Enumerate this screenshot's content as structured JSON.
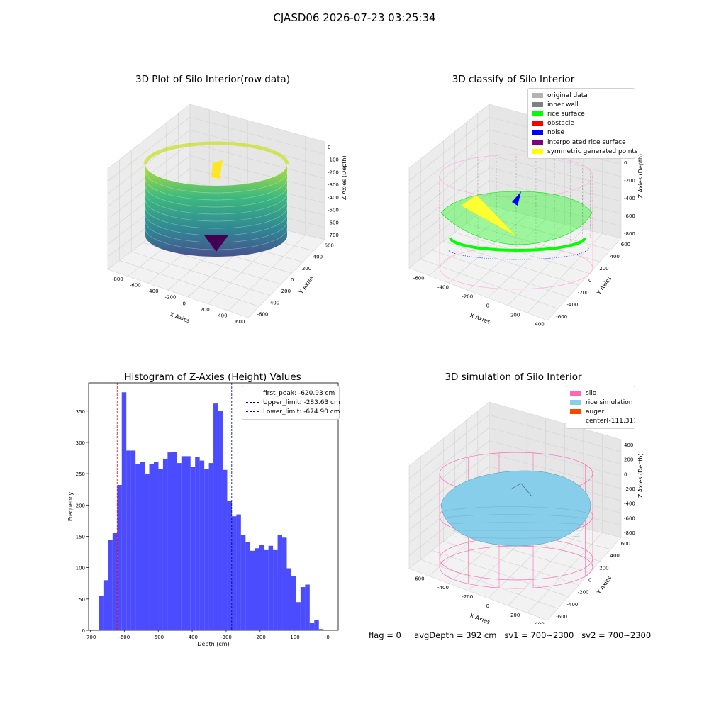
{
  "suptitle": "CJASD06 2026-07-23 03:25:34",
  "panels": {
    "raw": {
      "title": "3D Plot of Silo Interior(row data)",
      "xlabel": "X Axies",
      "ylabel": "Y Axies",
      "zlabel": "Z Axies (Depth)",
      "xticks": [
        "-800",
        "-600",
        "-400",
        "-200",
        "0",
        "200",
        "400",
        "600"
      ],
      "yticks": [
        "-600",
        "-400",
        "-200",
        "0",
        "200",
        "400",
        "600"
      ],
      "zticks": [
        "0",
        "-100",
        "-200",
        "-300",
        "-400",
        "-500",
        "-600",
        "-700"
      ]
    },
    "classify": {
      "title": "3D classify of Silo Interior",
      "xlabel": "X Axies",
      "ylabel": "Y Axies",
      "zlabel": "Z Axies (Depth)",
      "xticks": [
        "-600",
        "-400",
        "-200",
        "0",
        "200",
        "400"
      ],
      "yticks": [
        "-600",
        "-400",
        "-200",
        "0",
        "200",
        "400",
        "600"
      ],
      "zticks": [
        "200",
        "0",
        "-200",
        "-400",
        "-600",
        "-800"
      ],
      "legend": [
        {
          "label": "original data",
          "color": "#b3b3b3"
        },
        {
          "label": "inner wall",
          "color": "#808080"
        },
        {
          "label": "rice surface",
          "color": "#00ff00"
        },
        {
          "label": "obstacle",
          "color": "#ff0000"
        },
        {
          "label": "noise",
          "color": "#0000ff"
        },
        {
          "label": "interpolated rice surface",
          "color": "#800080"
        },
        {
          "label": "symmetric generated points",
          "color": "#ffff00"
        }
      ]
    },
    "simulation": {
      "title": "3D simulation of Silo Interior",
      "xlabel": "X Axies",
      "ylabel": "Y Axies",
      "zlabel": "Z Axies (Depth)",
      "xticks": [
        "-600",
        "-400",
        "-200",
        "0",
        "200",
        "400"
      ],
      "yticks": [
        "-600",
        "-400",
        "-200",
        "0",
        "200",
        "400",
        "600"
      ],
      "zticks": [
        "400",
        "200",
        "0",
        "-200",
        "-400",
        "-600",
        "-800"
      ],
      "legend": [
        {
          "label": "silo",
          "color": "#ff69b4"
        },
        {
          "label": "rice simulation",
          "color": "#87ceeb"
        },
        {
          "label": "auger",
          "color": "#ff4500"
        },
        {
          "label": "center(-111,31)",
          "color": ""
        }
      ]
    }
  },
  "chart_data": [
    {
      "type": "bar",
      "title": "Histogram of Z-Axies (Height) Values",
      "xlabel": "Depth (cm)",
      "ylabel": "Frequency",
      "xlim": [
        -705,
        30
      ],
      "ylim": [
        0,
        395
      ],
      "xticks": [
        -700,
        -600,
        -500,
        -400,
        -300,
        -200,
        -100,
        0
      ],
      "yticks": [
        0,
        50,
        100,
        150,
        200,
        250,
        300,
        350
      ],
      "bar_color": "#0000ff",
      "bins_start": -674.9,
      "bin_width": 13.5,
      "values": [
        55,
        80,
        144,
        155,
        232,
        380,
        287,
        287,
        265,
        269,
        249,
        265,
        269,
        258,
        274,
        284,
        285,
        267,
        278,
        278,
        261,
        277,
        271,
        258,
        267,
        362,
        350,
        256,
        207,
        182,
        185,
        152,
        141,
        127,
        131,
        136,
        128,
        135,
        128,
        152,
        148,
        99,
        87,
        45,
        69,
        73,
        12,
        16,
        2
      ],
      "vlines": [
        {
          "name": "first_peak: -620.93 cm",
          "x": -620.93,
          "color": "#ff0000"
        },
        {
          "name": "Upper_limit: -283.63 cm",
          "x": -283.63,
          "color": "#00008b"
        },
        {
          "name": "Lower_limit: -674.90 cm",
          "x": -674.9,
          "color": "#0000ff"
        }
      ],
      "legend": "top-right"
    }
  ],
  "footer": {
    "flag": "flag = 0",
    "avg": "avgDepth = 392 cm",
    "sv1": "sv1 = 700~2300",
    "sv2": "sv2 = 700~2300"
  }
}
